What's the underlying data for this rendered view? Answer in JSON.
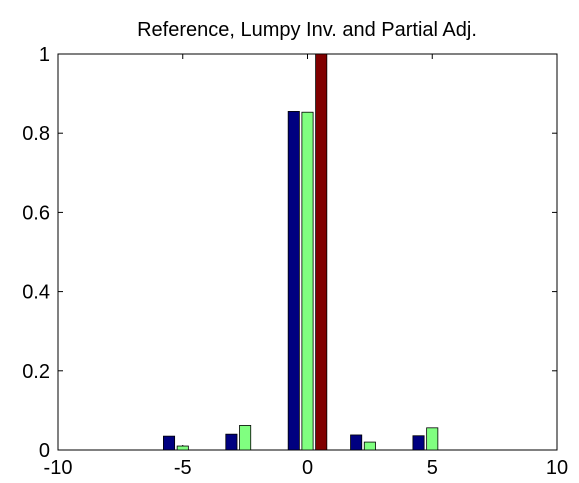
{
  "chart_data": {
    "type": "bar",
    "title": "Reference, Lumpy Inv. and Partial Adj.",
    "x": [
      -5,
      -2.5,
      0,
      2.5,
      5
    ],
    "series": [
      {
        "color": "#000080",
        "values": [
          0.035,
          0.04,
          0.855,
          0.038,
          0.036
        ]
      },
      {
        "color": "#80ff80",
        "values": [
          0.01,
          0.062,
          0.853,
          0.02,
          0.056
        ]
      },
      {
        "color": "#800000",
        "values": [
          0,
          0,
          1,
          0,
          0
        ]
      }
    ],
    "xlim": [
      -10,
      10
    ],
    "xticks": [
      -10,
      -5,
      0,
      5,
      10
    ],
    "ylim": [
      0,
      1
    ],
    "yticks": [
      0,
      0.2,
      0.4,
      0.6,
      0.8,
      1
    ]
  }
}
